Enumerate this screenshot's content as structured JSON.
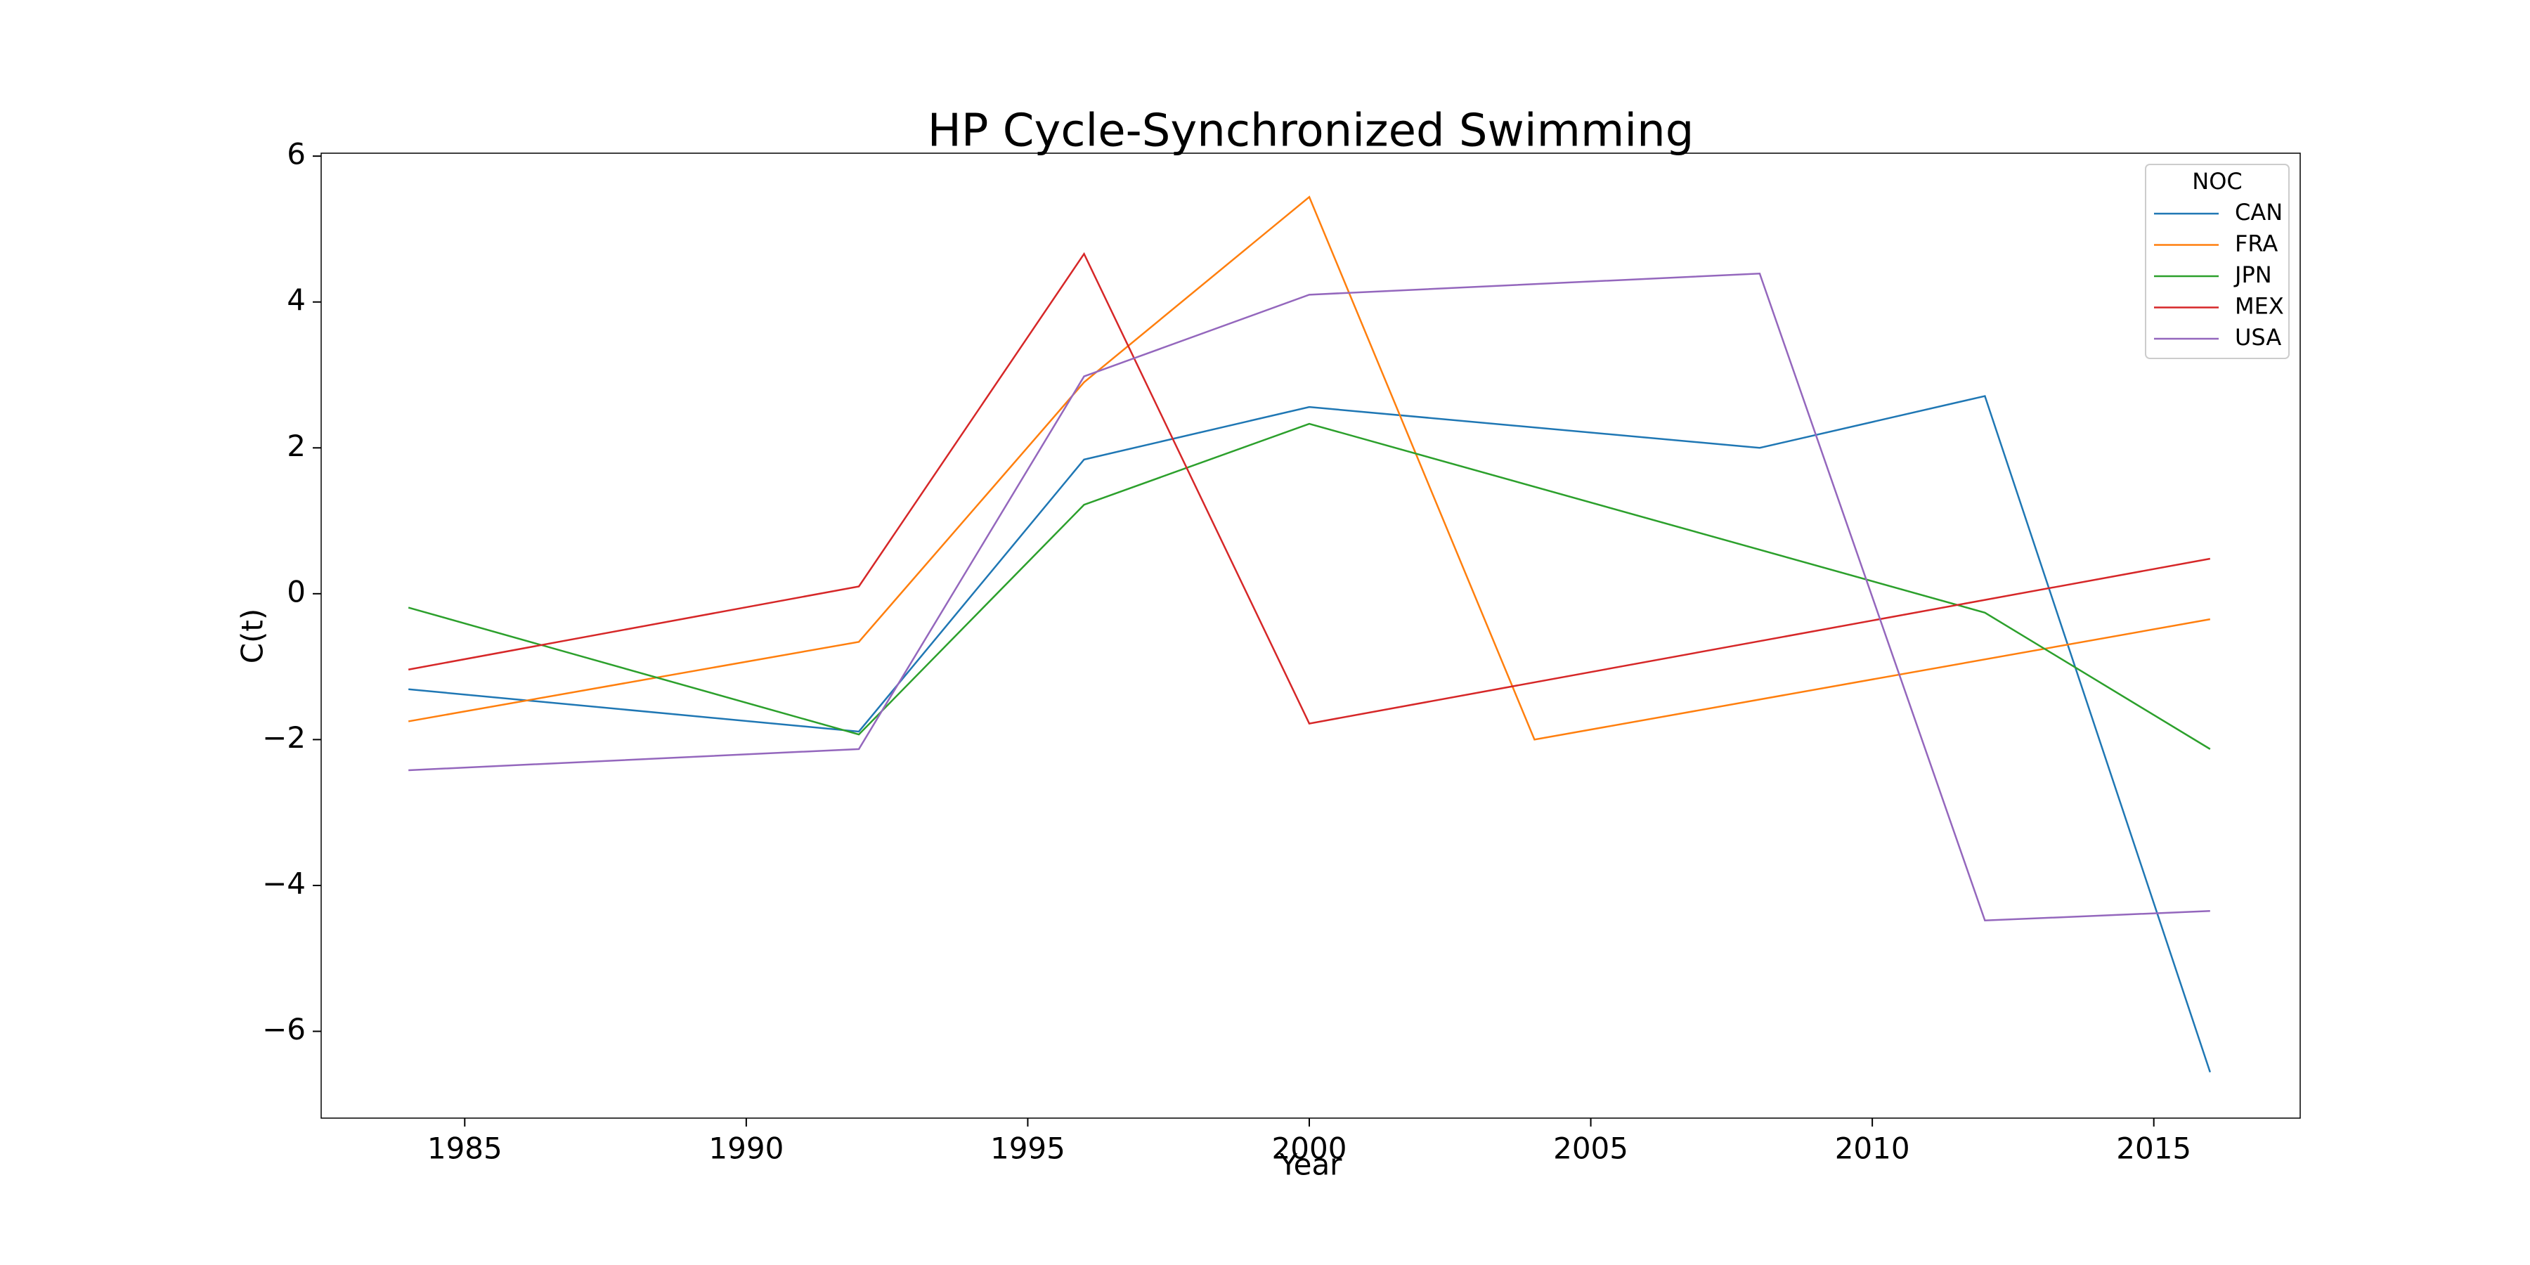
{
  "chart_data": {
    "type": "line",
    "title": "HP Cycle-Synchronized Swimming",
    "x_label": "Year",
    "y_label": "C(t)",
    "legend_title": "NOC",
    "legend": "upper right",
    "xlim": [
      1982.45,
      2017.6
    ],
    "xticks": [
      1985,
      1990,
      1995,
      2000,
      2005,
      2010,
      2015
    ],
    "ylim": [
      -7.19,
      6.04
    ],
    "yticks": [
      {
        "value": -6,
        "label": "−6"
      },
      {
        "value": -4,
        "label": "−4"
      },
      {
        "value": -2,
        "label": "−2"
      },
      0,
      2,
      4,
      6
    ],
    "series": [
      {
        "name": "CAN",
        "color": "#1f77b4",
        "x": [
          1984,
          1992,
          1996,
          2000,
          2008,
          2012,
          2016
        ],
        "values": [
          -1.31,
          -1.89,
          1.84,
          2.56,
          2.0,
          2.71,
          -6.56
        ]
      },
      {
        "name": "FRA",
        "color": "#ff7f0e",
        "x": [
          1984,
          1992,
          1996,
          2000,
          2004,
          2016
        ],
        "values": [
          -1.75,
          -0.66,
          2.9,
          5.44,
          -2.0,
          -0.35
        ]
      },
      {
        "name": "JPN",
        "color": "#2ca02c",
        "x": [
          1984,
          1992,
          1996,
          2000,
          2012,
          2016
        ],
        "values": [
          -0.19,
          -1.93,
          1.22,
          2.33,
          -0.26,
          -2.13
        ]
      },
      {
        "name": "MEX",
        "color": "#d62728",
        "x": [
          1984,
          1992,
          1996,
          2000,
          2016
        ],
        "values": [
          -1.04,
          0.1,
          4.66,
          -1.78,
          0.48
        ]
      },
      {
        "name": "USA",
        "color": "#9467bd",
        "x": [
          1984,
          1992,
          1996,
          2000,
          2008,
          2012,
          2016
        ],
        "values": [
          -2.42,
          -2.13,
          2.98,
          4.1,
          4.39,
          -4.48,
          -4.35
        ]
      }
    ]
  }
}
